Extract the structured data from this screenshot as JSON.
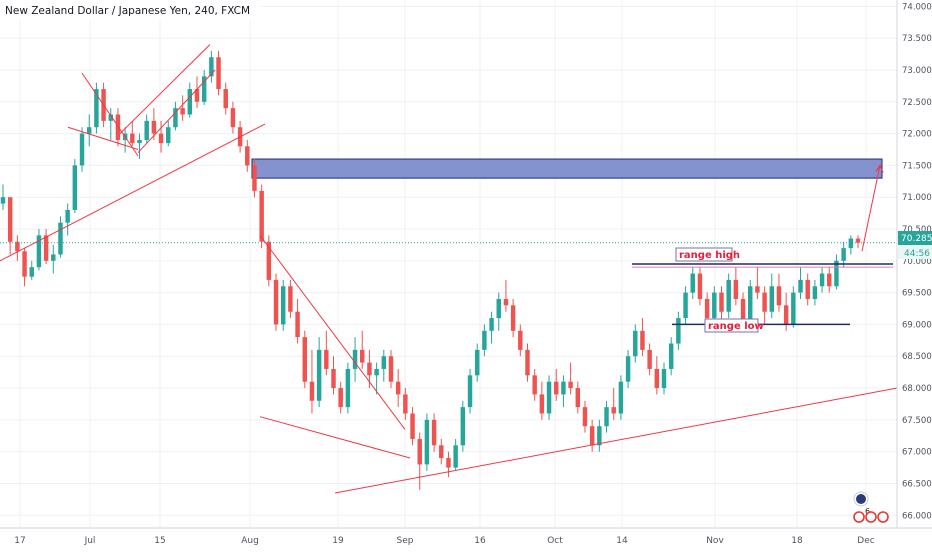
{
  "symbol_title": "New Zealand Dollar / Japanese Yen, 240, FXCM",
  "price_box": {
    "value": "70.285",
    "countdown": "44:56"
  },
  "annotations": {
    "range_high": "range high",
    "range_low": "range low"
  },
  "badge": {
    "count": "6"
  },
  "colors": {
    "up": "#26a69a",
    "down": "#ef5350",
    "trendline": "#f23645",
    "zone_fill": "#6f80c8",
    "zone_border": "#1f2a6a",
    "price_line": "#26a69a",
    "grid": "#eef0f4",
    "axis_text": "#50535e",
    "range_line": "#1f2a6a"
  },
  "chart_data": {
    "type": "candlestick",
    "title": "New Zealand Dollar / Japanese Yen, 240, FXCM",
    "xlabel": "",
    "ylabel": "",
    "ylim": [
      65.8,
      74.1
    ],
    "y_ticks": [
      "74.000",
      "73.500",
      "73.000",
      "72.500",
      "72.000",
      "71.500",
      "71.000",
      "70.500",
      "70.000",
      "69.500",
      "69.000",
      "68.500",
      "68.000",
      "67.500",
      "67.000",
      "66.500",
      "66.000"
    ],
    "x_ticks": [
      "17",
      "Jul",
      "15",
      "Aug",
      "19",
      "Sep",
      "16",
      "Oct",
      "14",
      "Nov",
      "18",
      "Dec"
    ],
    "last_price": 70.285,
    "grid": true,
    "series": [
      {
        "values": [
          [
            70.9,
            71.2,
            70.8,
            71.0
          ],
          [
            71.0,
            71.0,
            70.1,
            70.3
          ],
          [
            70.3,
            70.4,
            70.0,
            70.15
          ],
          [
            70.15,
            70.2,
            69.6,
            69.75
          ],
          [
            69.75,
            70.0,
            69.7,
            69.9
          ],
          [
            69.9,
            70.5,
            69.85,
            70.4
          ],
          [
            70.4,
            70.5,
            69.95,
            70.0
          ],
          [
            70.0,
            70.25,
            69.8,
            70.1
          ],
          [
            70.1,
            70.7,
            70.05,
            70.6
          ],
          [
            70.6,
            70.9,
            70.4,
            70.8
          ],
          [
            70.8,
            71.6,
            70.75,
            71.5
          ],
          [
            71.5,
            72.1,
            71.4,
            72.0
          ],
          [
            72.0,
            72.3,
            71.8,
            72.1
          ],
          [
            72.1,
            72.8,
            72.0,
            72.7
          ],
          [
            72.7,
            72.8,
            72.1,
            72.2
          ],
          [
            72.2,
            72.4,
            71.9,
            72.3
          ],
          [
            72.3,
            72.4,
            71.8,
            71.9
          ],
          [
            71.9,
            72.1,
            71.7,
            72.0
          ],
          [
            72.0,
            72.2,
            71.8,
            71.85
          ],
          [
            71.85,
            72.0,
            71.6,
            71.9
          ],
          [
            71.9,
            72.3,
            71.85,
            72.2
          ],
          [
            72.2,
            72.4,
            71.9,
            72.0
          ],
          [
            72.0,
            72.2,
            71.7,
            71.85
          ],
          [
            71.85,
            72.2,
            71.8,
            72.1
          ],
          [
            72.1,
            72.5,
            72.05,
            72.4
          ],
          [
            72.4,
            72.6,
            72.2,
            72.3
          ],
          [
            72.3,
            72.8,
            72.25,
            72.7
          ],
          [
            72.7,
            72.9,
            72.4,
            72.5
          ],
          [
            72.5,
            73.0,
            72.45,
            72.9
          ],
          [
            72.9,
            73.3,
            72.8,
            73.2
          ],
          [
            73.2,
            73.3,
            72.6,
            72.7
          ],
          [
            72.7,
            72.8,
            72.3,
            72.4
          ],
          [
            72.4,
            72.5,
            72.0,
            72.1
          ],
          [
            72.1,
            72.2,
            71.7,
            71.8
          ],
          [
            71.8,
            71.9,
            71.4,
            71.5
          ],
          [
            71.5,
            71.6,
            71.0,
            71.1
          ],
          [
            71.1,
            71.2,
            70.2,
            70.3
          ],
          [
            70.3,
            70.4,
            69.6,
            69.7
          ],
          [
            69.7,
            69.8,
            68.9,
            69.0
          ],
          [
            69.0,
            69.7,
            68.9,
            69.6
          ],
          [
            69.6,
            69.7,
            69.1,
            69.2
          ],
          [
            69.2,
            69.4,
            68.7,
            68.8
          ],
          [
            68.8,
            68.9,
            68.0,
            68.1
          ],
          [
            68.1,
            68.6,
            67.6,
            67.8
          ],
          [
            67.8,
            68.8,
            67.7,
            68.6
          ],
          [
            68.6,
            68.9,
            68.2,
            68.3
          ],
          [
            68.3,
            68.5,
            67.9,
            68.0
          ],
          [
            68.0,
            68.1,
            67.6,
            67.7
          ],
          [
            67.7,
            68.4,
            67.6,
            68.3
          ],
          [
            68.3,
            68.8,
            68.1,
            68.6
          ],
          [
            68.6,
            68.9,
            68.3,
            68.4
          ],
          [
            68.4,
            68.6,
            68.0,
            68.2
          ],
          [
            68.2,
            68.4,
            67.9,
            68.3
          ],
          [
            68.3,
            68.6,
            68.1,
            68.5
          ],
          [
            68.5,
            68.6,
            68.0,
            68.1
          ],
          [
            68.1,
            68.3,
            67.7,
            67.9
          ],
          [
            67.9,
            68.0,
            67.5,
            67.6
          ],
          [
            67.6,
            67.7,
            67.1,
            67.2
          ],
          [
            67.2,
            67.3,
            66.4,
            66.8
          ],
          [
            66.8,
            67.6,
            66.7,
            67.5
          ],
          [
            67.5,
            67.6,
            67.0,
            67.1
          ],
          [
            67.1,
            67.2,
            66.8,
            66.9
          ],
          [
            66.9,
            67.0,
            66.6,
            66.75
          ],
          [
            66.75,
            67.2,
            66.7,
            67.1
          ],
          [
            67.1,
            67.8,
            67.0,
            67.7
          ],
          [
            67.7,
            68.3,
            67.6,
            68.2
          ],
          [
            68.2,
            68.7,
            68.1,
            68.6
          ],
          [
            68.6,
            69.0,
            68.5,
            68.9
          ],
          [
            68.9,
            69.2,
            68.7,
            69.1
          ],
          [
            69.1,
            69.5,
            68.9,
            69.4
          ],
          [
            69.4,
            69.7,
            69.2,
            69.3
          ],
          [
            69.3,
            69.4,
            68.8,
            68.9
          ],
          [
            68.9,
            69.0,
            68.5,
            68.6
          ],
          [
            68.6,
            68.7,
            68.1,
            68.2
          ],
          [
            68.2,
            68.3,
            67.8,
            67.9
          ],
          [
            67.9,
            68.1,
            67.5,
            67.6
          ],
          [
            67.6,
            68.2,
            67.5,
            68.1
          ],
          [
            68.1,
            68.3,
            67.8,
            67.9
          ],
          [
            67.9,
            68.2,
            67.7,
            68.1
          ],
          [
            68.1,
            68.4,
            67.9,
            68.0
          ],
          [
            68.0,
            68.1,
            67.6,
            67.7
          ],
          [
            67.7,
            67.8,
            67.3,
            67.4
          ],
          [
            67.4,
            67.5,
            67.0,
            67.1
          ],
          [
            67.1,
            67.5,
            67.0,
            67.4
          ],
          [
            67.4,
            67.8,
            67.3,
            67.7
          ],
          [
            67.7,
            68.0,
            67.5,
            67.6
          ],
          [
            67.6,
            68.2,
            67.5,
            68.1
          ],
          [
            68.1,
            68.6,
            68.0,
            68.5
          ],
          [
            68.5,
            69.0,
            68.4,
            68.9
          ],
          [
            68.9,
            69.1,
            68.5,
            68.6
          ],
          [
            68.6,
            68.7,
            68.2,
            68.3
          ],
          [
            68.3,
            68.5,
            67.9,
            68.0
          ],
          [
            68.0,
            68.4,
            67.9,
            68.3
          ],
          [
            68.3,
            68.8,
            68.2,
            68.7
          ],
          [
            68.7,
            69.2,
            68.6,
            69.1
          ],
          [
            69.1,
            69.6,
            69.0,
            69.5
          ],
          [
            69.5,
            69.9,
            69.4,
            69.8
          ],
          [
            69.8,
            69.9,
            69.3,
            69.4
          ],
          [
            69.4,
            69.5,
            69.0,
            69.1
          ],
          [
            69.1,
            69.6,
            69.0,
            69.5
          ],
          [
            69.5,
            69.6,
            69.0,
            69.2
          ],
          [
            69.2,
            69.8,
            69.1,
            69.7
          ],
          [
            69.7,
            69.9,
            69.3,
            69.4
          ],
          [
            69.4,
            69.5,
            68.9,
            69.0
          ],
          [
            69.0,
            69.7,
            68.9,
            69.6
          ],
          [
            69.6,
            69.9,
            69.4,
            69.5
          ],
          [
            69.5,
            69.6,
            69.0,
            69.2
          ],
          [
            69.2,
            69.8,
            69.1,
            69.6
          ],
          [
            69.6,
            69.8,
            69.2,
            69.3
          ],
          [
            69.3,
            69.5,
            68.9,
            69.0
          ],
          [
            69.0,
            69.6,
            68.95,
            69.5
          ],
          [
            69.5,
            69.9,
            69.4,
            69.7
          ],
          [
            69.7,
            69.8,
            69.3,
            69.4
          ],
          [
            69.4,
            69.7,
            69.3,
            69.6
          ],
          [
            69.6,
            69.9,
            69.5,
            69.8
          ],
          [
            69.8,
            69.9,
            69.5,
            69.6
          ],
          [
            69.6,
            70.1,
            69.55,
            70.0
          ],
          [
            70.0,
            70.3,
            69.9,
            70.2
          ],
          [
            70.2,
            70.4,
            70.1,
            70.35
          ],
          [
            70.35,
            70.4,
            70.2,
            70.285
          ]
        ]
      }
    ]
  }
}
